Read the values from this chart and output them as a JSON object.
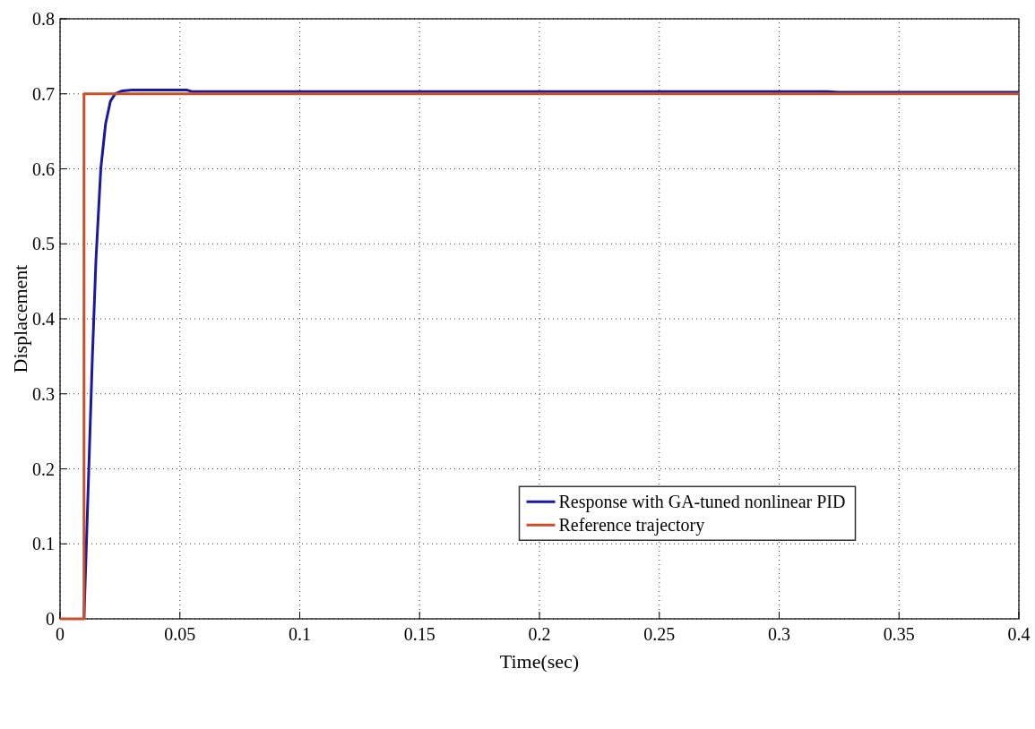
{
  "chart_data": {
    "type": "line",
    "xlabel": "Time(sec)",
    "ylabel": "Displacement",
    "xlim": [
      0,
      0.4
    ],
    "xticks": [
      0,
      0.05,
      0.1,
      0.15,
      0.2,
      0.25,
      0.3,
      0.35,
      0.4
    ],
    "ylim": [
      0,
      0.8
    ],
    "yticks": [
      0,
      0.1,
      0.2,
      0.3,
      0.4,
      0.5,
      0.6,
      0.7,
      0.8
    ],
    "grid": true,
    "legend": "bottom right",
    "line_style": "solid",
    "series": [
      {
        "name": "Response with GA-tuned nonlinear PID",
        "color": "#1a1aa0",
        "x": [
          0.01,
          0.0105,
          0.012,
          0.0135,
          0.015,
          0.017,
          0.019,
          0.021,
          0.023,
          0.026,
          0.03,
          0.053,
          0.055,
          0.32,
          0.325,
          0.4
        ],
        "values": [
          0,
          0.05,
          0.2,
          0.35,
          0.48,
          0.6,
          0.66,
          0.69,
          0.7,
          0.704,
          0.705,
          0.705,
          0.703,
          0.703,
          0.702,
          0.702
        ]
      },
      {
        "name": "Reference trajectory",
        "color": "#c8502a",
        "x": [
          0,
          0.01,
          0.01,
          0.4
        ],
        "values": [
          0,
          0,
          0.7,
          0.7
        ]
      }
    ]
  }
}
